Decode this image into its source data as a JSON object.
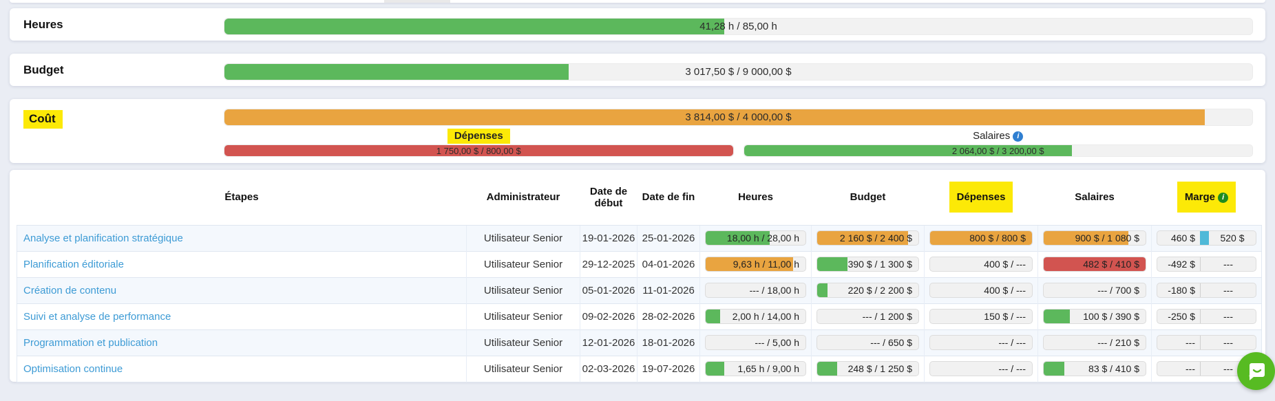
{
  "colors": {
    "green": "#5cb85c",
    "orange": "#e9a440",
    "red": "#d25450",
    "highlight_yellow": "#fce907",
    "link_blue": "#3d9bd5",
    "info_blue": "#2f7fd1",
    "info_green": "#1f8c1f",
    "marge_divider_blue": "#4fb9d8",
    "chat_green": "#57bb22",
    "page_bg": "#eaedf4"
  },
  "summary": {
    "cards": [
      {
        "label": "Heures",
        "highlight": false,
        "bar": {
          "text": "41,28 h / 85,00 h",
          "pct": 48.6,
          "color": "green"
        }
      },
      {
        "label": "Budget",
        "highlight": false,
        "bar": {
          "text": "3 017,50 $ / 9 000,00 $",
          "pct": 33.5,
          "color": "green"
        }
      },
      {
        "label": "Coût",
        "highlight": true,
        "bar": {
          "text": "3 814,00 $ / 4 000,00 $",
          "pct": 95.4,
          "color": "orange"
        },
        "subs": [
          {
            "label": "Dépenses",
            "text": "1 750,00 $ / 800,00 $",
            "pct": 100,
            "color": "red"
          },
          {
            "label": "Salaires",
            "info_icon": "i",
            "text": "2 064,00 $ / 3 200,00 $",
            "pct": 64.5,
            "color": "green"
          }
        ]
      }
    ]
  },
  "table": {
    "headers": {
      "etapes": "Étapes",
      "admin": "Administrateur",
      "date_debut": "Date de début",
      "date_fin": "Date de fin",
      "heures": "Heures",
      "budget": "Budget",
      "depenses": "Dépenses",
      "salaires": "Salaires",
      "marge": "Marge",
      "marge_info_icon": "i"
    },
    "rows": [
      {
        "etape": "Analyse et planification stratégique",
        "admin": "Utilisateur Senior",
        "date_debut": "19-01-2026",
        "date_fin": "25-01-2026",
        "heures": {
          "text": "18,00 h / 28,00 h",
          "pct": 64.3,
          "color": "green"
        },
        "budget": {
          "text": "2 160 $ / 2 400 $",
          "pct": 90,
          "color": "orange"
        },
        "depenses": {
          "text": "800 $ / 800 $",
          "pct": 100,
          "color": "orange"
        },
        "salaires": {
          "text": "900 $ / 1 080 $",
          "pct": 83.3,
          "color": "orange"
        },
        "marge": {
          "left": "460 $",
          "right": "520 $",
          "divider": "blue"
        }
      },
      {
        "etape": "Planification éditoriale",
        "admin": "Utilisateur Senior",
        "date_debut": "29-12-2025",
        "date_fin": "04-01-2026",
        "heures": {
          "text": "9,63 h / 11,00 h",
          "pct": 87.5,
          "color": "orange"
        },
        "budget": {
          "text": "390 $ / 1 300 $",
          "pct": 30,
          "color": "green"
        },
        "depenses": {
          "text": "400 $ / ---",
          "pct": 0,
          "color": "none"
        },
        "salaires": {
          "text": "482 $ / 410 $",
          "pct": 100,
          "color": "red"
        },
        "marge": {
          "left": "-492 $",
          "right": "---",
          "divider": "gray"
        }
      },
      {
        "etape": "Création de contenu",
        "admin": "Utilisateur Senior",
        "date_debut": "05-01-2026",
        "date_fin": "11-01-2026",
        "heures": {
          "text": "--- / 18,00 h",
          "pct": 0,
          "color": "none"
        },
        "budget": {
          "text": "220 $ / 2 200 $",
          "pct": 10,
          "color": "green"
        },
        "depenses": {
          "text": "400 $ / ---",
          "pct": 0,
          "color": "none"
        },
        "salaires": {
          "text": "--- / 700 $",
          "pct": 0,
          "color": "none"
        },
        "marge": {
          "left": "-180 $",
          "right": "---",
          "divider": "gray"
        }
      },
      {
        "etape": "Suivi et analyse de performance",
        "admin": "Utilisateur Senior",
        "date_debut": "09-02-2026",
        "date_fin": "28-02-2026",
        "heures": {
          "text": "2,00 h / 14,00 h",
          "pct": 14.3,
          "color": "green"
        },
        "budget": {
          "text": "--- / 1 200 $",
          "pct": 0,
          "color": "none"
        },
        "depenses": {
          "text": "150 $ / ---",
          "pct": 0,
          "color": "none"
        },
        "salaires": {
          "text": "100 $ / 390 $",
          "pct": 25.6,
          "color": "green"
        },
        "marge": {
          "left": "-250 $",
          "right": "---",
          "divider": "gray"
        }
      },
      {
        "etape": "Programmation et publication",
        "admin": "Utilisateur Senior",
        "date_debut": "12-01-2026",
        "date_fin": "18-01-2026",
        "heures": {
          "text": "--- / 5,00 h",
          "pct": 0,
          "color": "none"
        },
        "budget": {
          "text": "--- / 650 $",
          "pct": 0,
          "color": "none"
        },
        "depenses": {
          "text": "--- / ---",
          "pct": 0,
          "color": "none"
        },
        "salaires": {
          "text": "--- / 210 $",
          "pct": 0,
          "color": "none"
        },
        "marge": {
          "left": "---",
          "right": "---",
          "divider": "gray"
        }
      },
      {
        "etape": "Optimisation continue",
        "admin": "Utilisateur Senior",
        "date_debut": "02-03-2026",
        "date_fin": "19-07-2026",
        "heures": {
          "text": "1,65 h / 9,00 h",
          "pct": 18.3,
          "color": "green"
        },
        "budget": {
          "text": "248 $ / 1 250 $",
          "pct": 19.8,
          "color": "green"
        },
        "depenses": {
          "text": "--- / ---",
          "pct": 0,
          "color": "none"
        },
        "salaires": {
          "text": "83 $ / 410 $",
          "pct": 20.2,
          "color": "green"
        },
        "marge": {
          "left": "---",
          "right": "---",
          "divider": "gray"
        }
      }
    ]
  }
}
